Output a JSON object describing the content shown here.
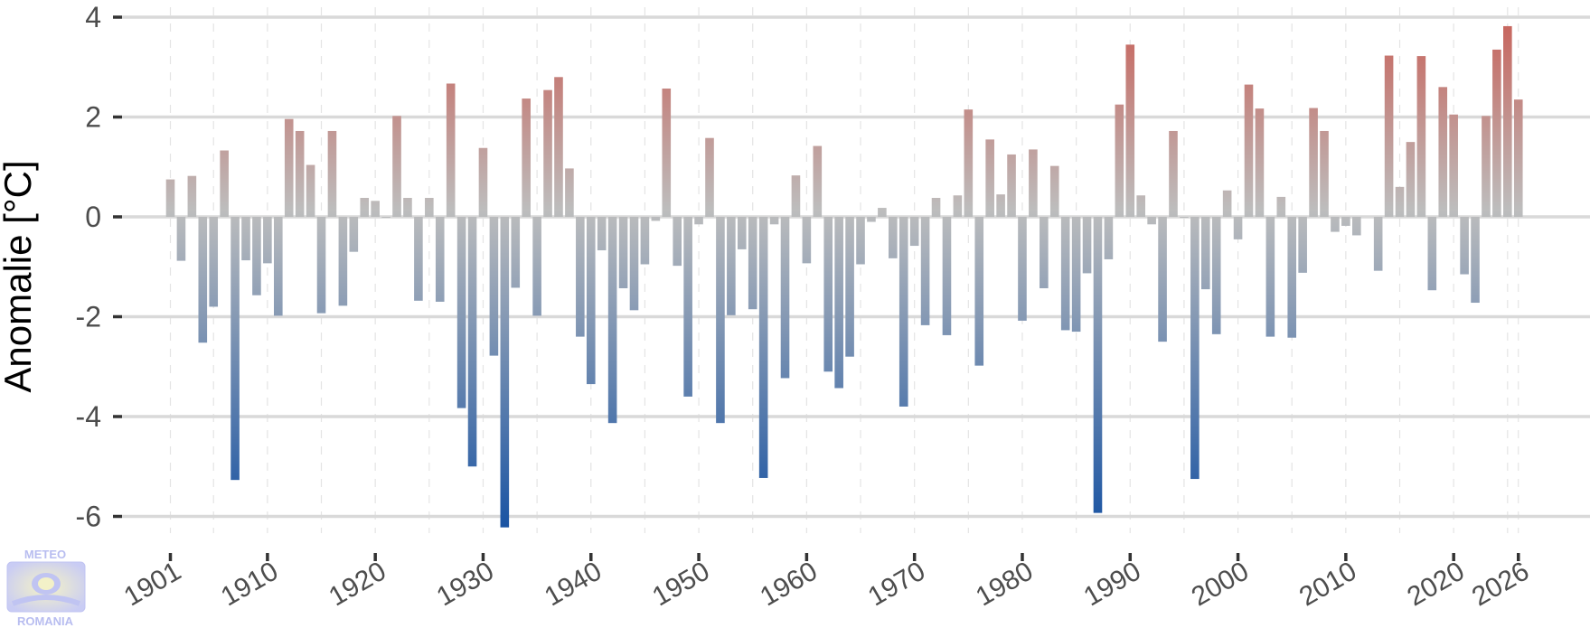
{
  "chart_data": {
    "type": "bar",
    "title": "",
    "xlabel": "",
    "ylabel": "Anomalie [°C]",
    "ylim": [
      -6.2,
      4
    ],
    "xlim": [
      1901,
      2026
    ],
    "y_ticks": [
      4,
      2,
      0,
      -2,
      -4,
      -6
    ],
    "y_tick_labels": [
      "4",
      "2",
      "0",
      "-2",
      "-4",
      "-6"
    ],
    "x_ticks": [
      1901,
      1910,
      1920,
      1930,
      1940,
      1950,
      1960,
      1970,
      1980,
      1990,
      2000,
      2010,
      2020,
      2026
    ],
    "x_tick_labels": [
      "1901",
      "1910",
      "1920",
      "1930",
      "1940",
      "1950",
      "1960",
      "1970",
      "1980",
      "1990",
      "2000",
      "2010",
      "2020",
      "2026"
    ],
    "grid": true,
    "colors": {
      "positive": "#c8625a",
      "neutral": "#bdbdbd",
      "negative": "#1a54a3",
      "grid": "#d9d9d9"
    },
    "years": [
      1901,
      1902,
      1903,
      1904,
      1905,
      1906,
      1907,
      1908,
      1909,
      1910,
      1911,
      1912,
      1913,
      1914,
      1915,
      1916,
      1917,
      1918,
      1919,
      1920,
      1921,
      1922,
      1923,
      1924,
      1925,
      1926,
      1927,
      1928,
      1929,
      1930,
      1931,
      1932,
      1933,
      1934,
      1935,
      1936,
      1937,
      1938,
      1939,
      1940,
      1941,
      1942,
      1943,
      1944,
      1945,
      1946,
      1947,
      1948,
      1949,
      1950,
      1951,
      1952,
      1953,
      1954,
      1955,
      1956,
      1957,
      1958,
      1959,
      1960,
      1961,
      1962,
      1963,
      1964,
      1965,
      1966,
      1967,
      1968,
      1969,
      1970,
      1971,
      1972,
      1973,
      1974,
      1975,
      1976,
      1977,
      1978,
      1979,
      1980,
      1981,
      1982,
      1983,
      1984,
      1985,
      1986,
      1987,
      1988,
      1989,
      1990,
      1991,
      1992,
      1993,
      1994,
      1995,
      1996,
      1997,
      1998,
      1999,
      2000,
      2001,
      2002,
      2003,
      2004,
      2005,
      2006,
      2007,
      2008,
      2009,
      2010,
      2011,
      2012,
      2013,
      2014,
      2015,
      2016,
      2017,
      2018,
      2019,
      2020,
      2021,
      2022,
      2023,
      2024,
      2025,
      2026
    ],
    "values": [
      0.75,
      -0.88,
      0.82,
      -2.52,
      -1.8,
      1.33,
      -5.27,
      -0.87,
      -1.57,
      -0.93,
      -1.98,
      1.96,
      1.72,
      1.04,
      -1.93,
      1.72,
      -1.78,
      -0.7,
      0.38,
      0.32,
      -0.02,
      2.02,
      0.38,
      -1.68,
      0.38,
      -1.7,
      2.67,
      -3.83,
      -5.0,
      1.38,
      -2.78,
      -6.22,
      -1.42,
      2.37,
      -1.98,
      2.54,
      2.8,
      0.97,
      -2.4,
      -3.35,
      -0.67,
      -4.13,
      -1.43,
      -1.87,
      -0.95,
      -0.08,
      2.57,
      -0.98,
      -3.6,
      -0.15,
      1.58,
      -4.13,
      -1.97,
      -0.65,
      -1.85,
      -5.23,
      -0.15,
      -3.23,
      0.83,
      -0.93,
      1.42,
      -3.1,
      -3.43,
      -2.8,
      -0.95,
      -0.1,
      0.18,
      -0.83,
      -3.8,
      -0.58,
      -2.17,
      0.38,
      -2.37,
      0.43,
      2.15,
      -2.98,
      1.55,
      0.45,
      1.25,
      -2.08,
      1.35,
      -1.43,
      1.02,
      -2.27,
      -2.3,
      -1.13,
      -5.93,
      -0.85,
      2.25,
      3.45,
      0.43,
      -0.15,
      -2.5,
      1.72,
      -0.02,
      -5.25,
      -1.45,
      -2.35,
      0.53,
      -0.45,
      2.65,
      2.17,
      -2.4,
      0.4,
      -2.42,
      -1.12,
      2.18,
      1.72,
      -0.3,
      -0.18,
      -0.37,
      0.0,
      -1.08,
      3.23,
      0.6,
      1.5,
      3.22,
      -1.47,
      2.6,
      2.05,
      -1.15,
      -1.72,
      2.02,
      3.35,
      3.82,
      2.35
    ]
  },
  "logo": {
    "top_text": "METEO",
    "bottom_text": "ROMANIA"
  }
}
